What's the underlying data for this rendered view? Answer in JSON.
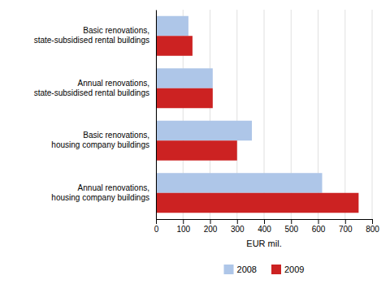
{
  "chart_data": {
    "type": "bar",
    "orientation": "horizontal",
    "categories": [
      "Annual renovations,\nhousing company buildings",
      "Basic renovations,\nhousing company buildings",
      "Annual renovations,\nstate-subsidised rental buildings",
      "Basic renovations,\nstate-subsidised rental buildings"
    ],
    "series": [
      {
        "name": "2008",
        "color": "#aec6e8",
        "values": [
          615,
          355,
          210,
          120
        ]
      },
      {
        "name": "2009",
        "color": "#cc2222",
        "values": [
          750,
          300,
          210,
          135
        ]
      }
    ],
    "xlabel": "EUR mil.",
    "xlim": [
      0,
      800
    ],
    "xticks": [
      0,
      100,
      200,
      300,
      400,
      500,
      600,
      700,
      800
    ],
    "grid": true,
    "legend": "bottom"
  }
}
